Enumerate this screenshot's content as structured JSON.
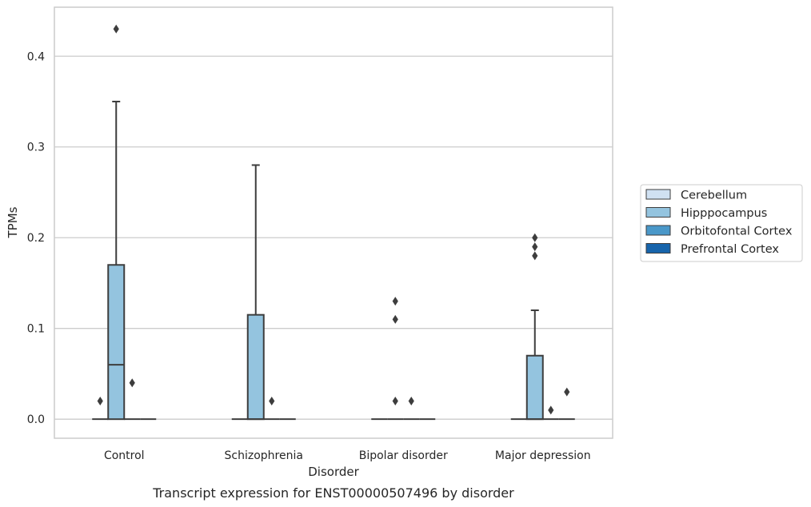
{
  "chart_data": {
    "type": "box",
    "xlabel": "Disorder",
    "ylabel": "TPMs",
    "caption": "Transcript expression for ENST00000507496 by disorder",
    "categories": [
      "Control",
      "Schizophrenia",
      "Bipolar disorder",
      "Major depression"
    ],
    "ylim": [
      -0.021,
      0.454
    ],
    "yticks": [
      "0.0",
      "0.1",
      "0.2",
      "0.3",
      "0.4"
    ],
    "grid": true,
    "legend_position": "right",
    "series": [
      {
        "name": "Cerebellum",
        "color": "#d0e1f2",
        "boxes": [
          {
            "q1": 0,
            "median": 0,
            "q3": 0,
            "whisker_low": 0,
            "whisker_high": 0,
            "outliers": [
              0.02
            ]
          },
          {
            "q1": 0,
            "median": 0,
            "q3": 0,
            "whisker_low": 0,
            "whisker_high": 0,
            "outliers": []
          },
          {
            "q1": 0,
            "median": 0,
            "q3": 0,
            "whisker_low": 0,
            "whisker_high": 0,
            "outliers": []
          },
          {
            "q1": 0,
            "median": 0,
            "q3": 0,
            "whisker_low": 0,
            "whisker_high": 0,
            "outliers": []
          }
        ]
      },
      {
        "name": "Hipppocampus",
        "color": "#94c4df",
        "boxes": [
          {
            "q1": 0,
            "median": 0.06,
            "q3": 0.17,
            "whisker_low": 0,
            "whisker_high": 0.35,
            "outliers": [
              0.43
            ]
          },
          {
            "q1": 0,
            "median": 0,
            "q3": 0.115,
            "whisker_low": 0,
            "whisker_high": 0.28,
            "outliers": []
          },
          {
            "q1": 0,
            "median": 0,
            "q3": 0,
            "whisker_low": 0,
            "whisker_high": 0,
            "outliers": [
              0.13,
              0.11,
              0.02
            ]
          },
          {
            "q1": 0,
            "median": 0,
            "q3": 0.07,
            "whisker_low": 0,
            "whisker_high": 0.12,
            "outliers": [
              0.2,
              0.19,
              0.18
            ]
          }
        ]
      },
      {
        "name": "Orbitofontal Cortex",
        "color": "#4a98c9",
        "boxes": [
          {
            "q1": 0,
            "median": 0,
            "q3": 0,
            "whisker_low": 0,
            "whisker_high": 0,
            "outliers": [
              0.04
            ]
          },
          {
            "q1": 0,
            "median": 0,
            "q3": 0,
            "whisker_low": 0,
            "whisker_high": 0,
            "outliers": [
              0.02
            ]
          },
          {
            "q1": 0,
            "median": 0,
            "q3": 0,
            "whisker_low": 0,
            "whisker_high": 0,
            "outliers": [
              0.02
            ]
          },
          {
            "q1": 0,
            "median": 0,
            "q3": 0,
            "whisker_low": 0,
            "whisker_high": 0,
            "outliers": [
              0.01
            ]
          }
        ]
      },
      {
        "name": "Prefrontal Cortex",
        "color": "#1764ab",
        "boxes": [
          {
            "q1": 0,
            "median": 0,
            "q3": 0,
            "whisker_low": 0,
            "whisker_high": 0,
            "outliers": []
          },
          {
            "q1": 0,
            "median": 0,
            "q3": 0,
            "whisker_low": 0,
            "whisker_high": 0,
            "outliers": []
          },
          {
            "q1": 0,
            "median": 0,
            "q3": 0,
            "whisker_low": 0,
            "whisker_high": 0,
            "outliers": []
          },
          {
            "q1": 0,
            "median": 0,
            "q3": 0,
            "whisker_low": 0,
            "whisker_high": 0,
            "outliers": [
              0.03
            ]
          }
        ]
      }
    ]
  }
}
